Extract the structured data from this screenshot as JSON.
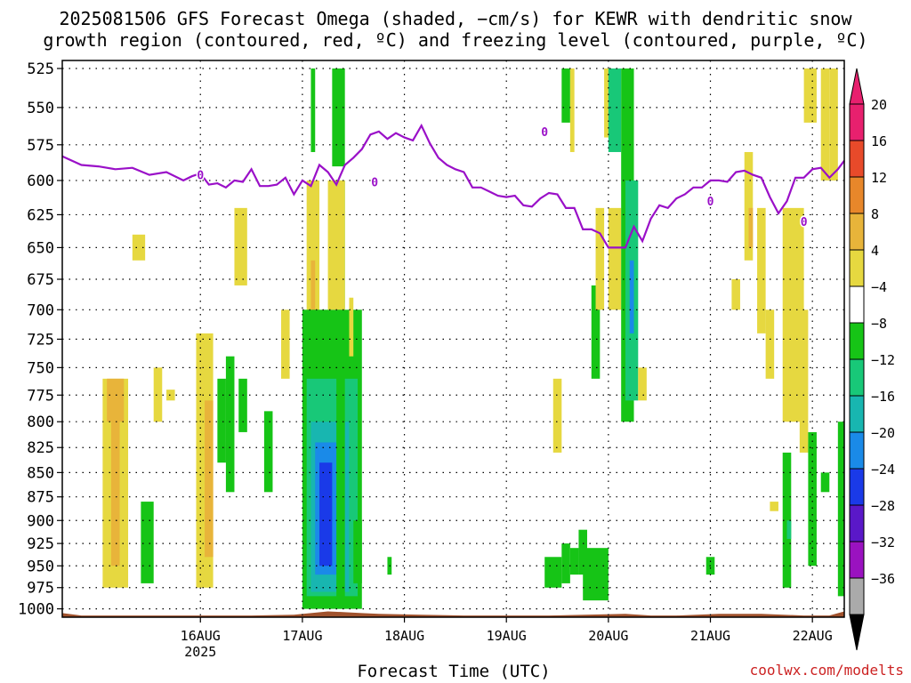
{
  "title_line1": "2025081506 GFS Forecast Omega (shaded, −cm/s) for KEWR with dendritic snow",
  "title_line2": "growth region (contoured, red, ºC) and freezing level (contoured, purple, ºC)",
  "credit": "coolwx.com/modelts",
  "chart_data": {
    "type": "heatmap",
    "title": "2025081506 GFS Forecast Omega (shaded, −cm/s) for KEWR with dendritic snow growth region (contoured, red, ºC) and freezing level (contoured, purple, ºC)",
    "xlabel": "Forecast Time (UTC)",
    "ylabel": "",
    "x_range_hours": [
      -14.5,
      169.5
    ],
    "y_range_hpa": [
      520,
      1010
    ],
    "x_ticks": [
      {
        "hour": 18,
        "label": "16AUG",
        "sub": "2025"
      },
      {
        "hour": 42,
        "label": "17AUG",
        "sub": ""
      },
      {
        "hour": 66,
        "label": "18AUG",
        "sub": ""
      },
      {
        "hour": 90,
        "label": "19AUG",
        "sub": ""
      },
      {
        "hour": 114,
        "label": "20AUG",
        "sub": ""
      },
      {
        "hour": 138,
        "label": "21AUG",
        "sub": ""
      },
      {
        "hour": 162,
        "label": "22AUG",
        "sub": ""
      }
    ],
    "y_ticks": [
      525,
      550,
      575,
      600,
      625,
      650,
      675,
      700,
      725,
      750,
      775,
      800,
      825,
      850,
      875,
      900,
      925,
      950,
      975,
      1000
    ],
    "grid": "dotted",
    "colorbar": {
      "labels": [
        "20",
        "16",
        "12",
        "8",
        "4",
        "−4",
        "−8",
        "−12",
        "−16",
        "−20",
        "−24",
        "−28",
        "−32",
        "−36"
      ],
      "colors": [
        "#e8206e",
        "#e84a2a",
        "#e8872a",
        "#e8b43a",
        "#e6d840",
        "#ffffff",
        "#16c416",
        "#18c878",
        "#18b6b0",
        "#1a8ae8",
        "#1a3ae8",
        "#5a18c8",
        "#9a12c0",
        "#aaaaaa"
      ]
    },
    "freezing_level": {
      "label": "0",
      "color": "#9a10c8",
      "hours": [
        -14.5,
        -10,
        -6,
        -2,
        2,
        6,
        10,
        14,
        16,
        18,
        20,
        22,
        24,
        26,
        28,
        30,
        32,
        34,
        36,
        38,
        40,
        42,
        44,
        46,
        48,
        50,
        52,
        54,
        56,
        58,
        60,
        62,
        64,
        66,
        68,
        70,
        72,
        74,
        76,
        78,
        80,
        82,
        84,
        86,
        88,
        90,
        92,
        94,
        96,
        98,
        100,
        102,
        104,
        106,
        108,
        110,
        112,
        114,
        116,
        118,
        120,
        122,
        124,
        126,
        128,
        130,
        132,
        134,
        136,
        138,
        140,
        142,
        144,
        146,
        148,
        150,
        152,
        154,
        156,
        158,
        160,
        162,
        164,
        166,
        168,
        169.5
      ],
      "hpa": [
        583,
        589,
        590,
        592,
        591,
        596,
        594,
        600,
        597,
        595,
        603,
        602,
        605,
        600,
        601,
        592,
        604,
        604,
        603,
        598,
        610,
        600,
        604,
        589,
        594,
        603,
        589,
        584,
        578,
        568,
        566,
        571,
        567,
        570,
        572,
        562,
        574,
        584,
        589,
        592,
        594,
        605,
        605,
        608,
        611,
        612,
        611,
        618,
        619,
        613,
        609,
        610,
        620,
        620,
        636,
        636,
        639,
        650,
        650,
        650,
        634,
        645,
        628,
        618,
        620,
        613,
        610,
        605,
        605,
        600,
        600,
        601,
        594,
        593,
        596,
        598,
        612,
        624,
        615,
        598,
        598,
        592,
        591,
        598,
        592,
        586,
        586
      ]
    },
    "omega_cells": [
      {
        "x0": -5,
        "x1": 1,
        "p0": 760,
        "p1": 975,
        "value": 5
      },
      {
        "x0": -3,
        "x1": -1,
        "p0": 770,
        "p1": 950,
        "value": 9
      },
      {
        "x0": -4,
        "x1": 0,
        "p0": 760,
        "p1": 800,
        "value": 9
      },
      {
        "x0": 2,
        "x1": 5,
        "p0": 640,
        "p1": 660,
        "value": 5
      },
      {
        "x0": 4,
        "x1": 7,
        "p0": 880,
        "p1": 970,
        "value": -6
      },
      {
        "x0": 7,
        "x1": 9,
        "p0": 750,
        "p1": 800,
        "value": 5
      },
      {
        "x0": 10,
        "x1": 12,
        "p0": 770,
        "p1": 780,
        "value": 5
      },
      {
        "x0": 17,
        "x1": 21,
        "p0": 720,
        "p1": 975,
        "value": 5
      },
      {
        "x0": 19,
        "x1": 21,
        "p0": 780,
        "p1": 940,
        "value": 9
      },
      {
        "x0": 22,
        "x1": 24,
        "p0": 760,
        "p1": 840,
        "value": -6
      },
      {
        "x0": 24,
        "x1": 26,
        "p0": 740,
        "p1": 870,
        "value": -6
      },
      {
        "x0": 27,
        "x1": 29,
        "p0": 760,
        "p1": 810,
        "value": -6
      },
      {
        "x0": 26,
        "x1": 29,
        "p0": 620,
        "p1": 680,
        "value": 5
      },
      {
        "x0": 33,
        "x1": 35,
        "p0": 790,
        "p1": 870,
        "value": -6
      },
      {
        "x0": 37,
        "x1": 39,
        "p0": 700,
        "p1": 760,
        "value": 5
      },
      {
        "x0": 42,
        "x1": 44,
        "p0": 840,
        "p1": 880,
        "value": 5
      },
      {
        "x0": 43,
        "x1": 46,
        "p0": 600,
        "p1": 760,
        "value": 5
      },
      {
        "x0": 44,
        "x1": 45,
        "p0": 660,
        "p1": 720,
        "value": 9
      },
      {
        "x0": 44,
        "x1": 45,
        "p0": 525,
        "p1": 580,
        "value": -6
      },
      {
        "x0": 42,
        "x1": 56,
        "p0": 700,
        "p1": 1000,
        "value": -6
      },
      {
        "x0": 43,
        "x1": 55,
        "p0": 760,
        "p1": 985,
        "value": -10
      },
      {
        "x0": 44,
        "x1": 53,
        "p0": 800,
        "p1": 980,
        "value": -14
      },
      {
        "x0": 45,
        "x1": 51,
        "p0": 820,
        "p1": 960,
        "value": -18
      },
      {
        "x0": 46,
        "x1": 49,
        "p0": 840,
        "p1": 950,
        "value": -22
      },
      {
        "x0": 49,
        "x1": 52,
        "p0": 525,
        "p1": 590,
        "value": -6
      },
      {
        "x0": 50,
        "x1": 52,
        "p0": 600,
        "p1": 1000,
        "value": -6
      },
      {
        "x0": 48,
        "x1": 52,
        "p0": 600,
        "p1": 700,
        "value": 5
      },
      {
        "x0": 53,
        "x1": 54,
        "p0": 690,
        "p1": 740,
        "value": 5
      },
      {
        "x0": 54,
        "x1": 56,
        "p0": 900,
        "p1": 970,
        "value": -6
      },
      {
        "x0": 62,
        "x1": 63,
        "p0": 940,
        "p1": 960,
        "value": -6
      },
      {
        "x0": 99,
        "x1": 103,
        "p0": 940,
        "p1": 975,
        "value": -6
      },
      {
        "x0": 101,
        "x1": 103,
        "p0": 760,
        "p1": 830,
        "value": 5
      },
      {
        "x0": 103,
        "x1": 105,
        "p0": 525,
        "p1": 560,
        "value": -6
      },
      {
        "x0": 103,
        "x1": 105,
        "p0": 925,
        "p1": 970,
        "value": -6
      },
      {
        "x0": 105,
        "x1": 107,
        "p0": 930,
        "p1": 960,
        "value": -6
      },
      {
        "x0": 105,
        "x1": 106,
        "p0": 525,
        "p1": 580,
        "value": 5
      },
      {
        "x0": 107,
        "x1": 109,
        "p0": 910,
        "p1": 960,
        "value": -6
      },
      {
        "x0": 108,
        "x1": 114,
        "p0": 930,
        "p1": 990,
        "value": -6
      },
      {
        "x0": 110,
        "x1": 112,
        "p0": 680,
        "p1": 760,
        "value": -6
      },
      {
        "x0": 111,
        "x1": 113,
        "p0": 620,
        "p1": 700,
        "value": 5
      },
      {
        "x0": 113,
        "x1": 115,
        "p0": 525,
        "p1": 570,
        "value": 5
      },
      {
        "x0": 114,
        "x1": 117,
        "p0": 525,
        "p1": 580,
        "value": -10
      },
      {
        "x0": 114,
        "x1": 117,
        "p0": 620,
        "p1": 700,
        "value": 5
      },
      {
        "x0": 117,
        "x1": 120,
        "p0": 525,
        "p1": 800,
        "value": -6
      },
      {
        "x0": 118,
        "x1": 121,
        "p0": 600,
        "p1": 780,
        "value": -10
      },
      {
        "x0": 119,
        "x1": 120,
        "p0": 660,
        "p1": 720,
        "value": -18
      },
      {
        "x0": 121,
        "x1": 123,
        "p0": 750,
        "p1": 780,
        "value": 5
      },
      {
        "x0": 146,
        "x1": 148,
        "p0": 580,
        "p1": 660,
        "value": 5
      },
      {
        "x0": 147,
        "x1": 148,
        "p0": 620,
        "p1": 650,
        "value": 9
      },
      {
        "x0": 143,
        "x1": 145,
        "p0": 675,
        "p1": 700,
        "value": 5
      },
      {
        "x0": 149,
        "x1": 151,
        "p0": 620,
        "p1": 720,
        "value": 5
      },
      {
        "x0": 151,
        "x1": 153,
        "p0": 700,
        "p1": 760,
        "value": 5
      },
      {
        "x0": 152,
        "x1": 154,
        "p0": 880,
        "p1": 890,
        "value": 5
      },
      {
        "x0": 155,
        "x1": 160,
        "p0": 620,
        "p1": 800,
        "value": 5
      },
      {
        "x0": 155,
        "x1": 157,
        "p0": 830,
        "p1": 975,
        "value": -6
      },
      {
        "x0": 156,
        "x1": 157,
        "p0": 900,
        "p1": 920,
        "value": -10
      },
      {
        "x0": 159,
        "x1": 161,
        "p0": 700,
        "p1": 830,
        "value": 5
      },
      {
        "x0": 160,
        "x1": 163,
        "p0": 525,
        "p1": 560,
        "value": 5
      },
      {
        "x0": 161,
        "x1": 163,
        "p0": 810,
        "p1": 950,
        "value": -6
      },
      {
        "x0": 164,
        "x1": 166,
        "p0": 525,
        "p1": 600,
        "value": 5
      },
      {
        "x0": 164,
        "x1": 166,
        "p0": 850,
        "p1": 870,
        "value": -6
      },
      {
        "x0": 166,
        "x1": 168,
        "p0": 525,
        "p1": 600,
        "value": 5
      },
      {
        "x0": 168,
        "x1": 169.5,
        "p0": 800,
        "p1": 985,
        "value": -6
      },
      {
        "x0": 137,
        "x1": 139,
        "p0": 940,
        "p1": 960,
        "value": -6
      }
    ],
    "terrain": {
      "color": "#a0522d",
      "hours": [
        -14.5,
        -10,
        0,
        20,
        30,
        40,
        44,
        48,
        52,
        56,
        60,
        70,
        80,
        100,
        118,
        124,
        130,
        140,
        150,
        160,
        166,
        169.5
      ],
      "hpa": [
        1005,
        1008,
        1008,
        1008,
        1008,
        1007,
        1005,
        1003,
        1004,
        1005,
        1006,
        1007,
        1008,
        1008,
        1006,
        1008,
        1008,
        1006,
        1006,
        1008,
        1008,
        1003
      ]
    }
  }
}
